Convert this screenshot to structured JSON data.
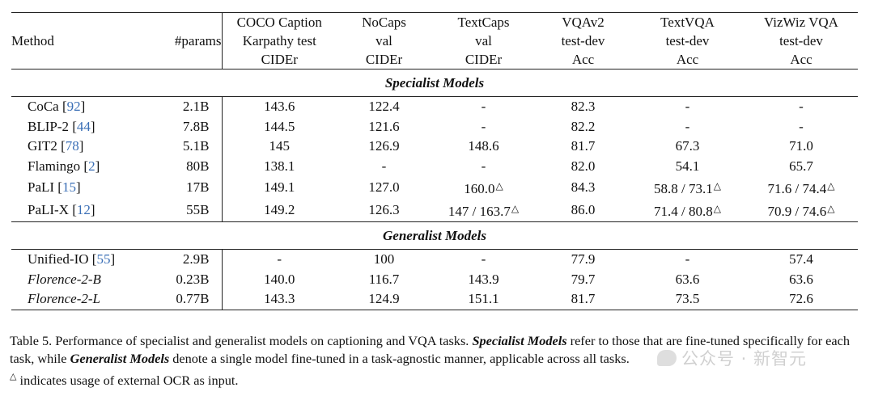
{
  "table": {
    "headers": [
      {
        "lines": [
          "Method"
        ]
      },
      {
        "lines": [
          "#params"
        ]
      },
      {
        "lines": [
          "COCO Caption",
          "Karpathy test",
          "CIDEr"
        ]
      },
      {
        "lines": [
          "NoCaps",
          "val",
          "CIDEr"
        ]
      },
      {
        "lines": [
          "TextCaps",
          "val",
          "CIDEr"
        ]
      },
      {
        "lines": [
          "VQAv2",
          "test-dev",
          "Acc"
        ]
      },
      {
        "lines": [
          "TextVQA",
          "test-dev",
          "Acc"
        ]
      },
      {
        "lines": [
          "VizWiz VQA",
          "test-dev",
          "Acc"
        ]
      }
    ],
    "sections": [
      {
        "title": "Specialist Models",
        "rows": [
          {
            "method": "CoCa",
            "cite": "92",
            "italic": false,
            "params": "2.1B",
            "cells": [
              {
                "v": "143.6",
                "ocr": false
              },
              {
                "v": "122.4",
                "ocr": false
              },
              {
                "v": "-",
                "ocr": false
              },
              {
                "v": "82.3",
                "ocr": false
              },
              {
                "v": "-",
                "ocr": false
              },
              {
                "v": "-",
                "ocr": false
              }
            ]
          },
          {
            "method": "BLIP-2",
            "cite": "44",
            "italic": false,
            "params": "7.8B",
            "cells": [
              {
                "v": "144.5",
                "ocr": false
              },
              {
                "v": "121.6",
                "ocr": false
              },
              {
                "v": "-",
                "ocr": false
              },
              {
                "v": "82.2",
                "ocr": false
              },
              {
                "v": "-",
                "ocr": false
              },
              {
                "v": "-",
                "ocr": false
              }
            ]
          },
          {
            "method": "GIT2",
            "cite": "78",
            "italic": false,
            "params": "5.1B",
            "cells": [
              {
                "v": "145",
                "ocr": false
              },
              {
                "v": "126.9",
                "ocr": false
              },
              {
                "v": "148.6",
                "ocr": false
              },
              {
                "v": "81.7",
                "ocr": false
              },
              {
                "v": "67.3",
                "ocr": false
              },
              {
                "v": "71.0",
                "ocr": false
              }
            ]
          },
          {
            "method": "Flamingo",
            "cite": "2",
            "italic": false,
            "params": "80B",
            "cells": [
              {
                "v": "138.1",
                "ocr": false
              },
              {
                "v": "-",
                "ocr": false
              },
              {
                "v": "-",
                "ocr": false
              },
              {
                "v": "82.0",
                "ocr": false
              },
              {
                "v": "54.1",
                "ocr": false
              },
              {
                "v": "65.7",
                "ocr": false
              }
            ]
          },
          {
            "method": "PaLI",
            "cite": "15",
            "italic": false,
            "params": "17B",
            "cells": [
              {
                "v": "149.1",
                "ocr": false
              },
              {
                "v": "127.0",
                "ocr": false
              },
              {
                "v": "160.0",
                "ocr": true
              },
              {
                "v": "84.3",
                "ocr": false
              },
              {
                "v": "58.8 / 73.1",
                "ocr": true
              },
              {
                "v": "71.6 / 74.4",
                "ocr": true
              }
            ]
          },
          {
            "method": "PaLI-X",
            "cite": "12",
            "italic": false,
            "params": "55B",
            "cells": [
              {
                "v": "149.2",
                "ocr": false
              },
              {
                "v": "126.3",
                "ocr": false
              },
              {
                "v": "147 / 163.7",
                "ocr": true
              },
              {
                "v": "86.0",
                "ocr": false
              },
              {
                "v": "71.4 / 80.8",
                "ocr": true
              },
              {
                "v": "70.9 / 74.6",
                "ocr": true
              }
            ]
          }
        ]
      },
      {
        "title": "Generalist Models",
        "rows": [
          {
            "method": "Unified-IO",
            "cite": "55",
            "italic": false,
            "params": "2.9B",
            "cells": [
              {
                "v": "-",
                "ocr": false
              },
              {
                "v": "100",
                "ocr": false
              },
              {
                "v": "-",
                "ocr": false
              },
              {
                "v": "77.9",
                "ocr": false
              },
              {
                "v": "-",
                "ocr": false
              },
              {
                "v": "57.4",
                "ocr": false
              }
            ]
          },
          {
            "method": "Florence-2-B",
            "cite": "",
            "italic": true,
            "params": "0.23B",
            "cells": [
              {
                "v": "140.0",
                "ocr": false
              },
              {
                "v": "116.7",
                "ocr": false
              },
              {
                "v": "143.9",
                "ocr": false
              },
              {
                "v": "79.7",
                "ocr": false
              },
              {
                "v": "63.6",
                "ocr": false
              },
              {
                "v": "63.6",
                "ocr": false
              }
            ]
          },
          {
            "method": "Florence-2-L",
            "cite": "",
            "italic": true,
            "params": "0.77B",
            "cells": [
              {
                "v": "143.3",
                "ocr": false
              },
              {
                "v": "124.9",
                "ocr": false
              },
              {
                "v": "151.1",
                "ocr": false
              },
              {
                "v": "81.7",
                "ocr": false
              },
              {
                "v": "73.5",
                "ocr": false
              },
              {
                "v": "72.6",
                "ocr": false
              }
            ]
          }
        ]
      }
    ],
    "ocr_marker": "△"
  },
  "caption": {
    "part1": "Table 5. Performance of specialist and generalist models on captioning and VQA tasks.",
    "specialist_term": "Specialist Models",
    "part2": "refer to those that are fine-tuned specifically for each task, while",
    "generalist_term": "Generalist Models",
    "part3": "denote a single model fine-tuned in a task-agnostic manner, applicable across all tasks.",
    "marker": "△",
    "part4": "indicates usage of external OCR as input."
  },
  "watermark": {
    "text": "公众号 · 新智元",
    "icon": "wechat-bubble-icon"
  }
}
